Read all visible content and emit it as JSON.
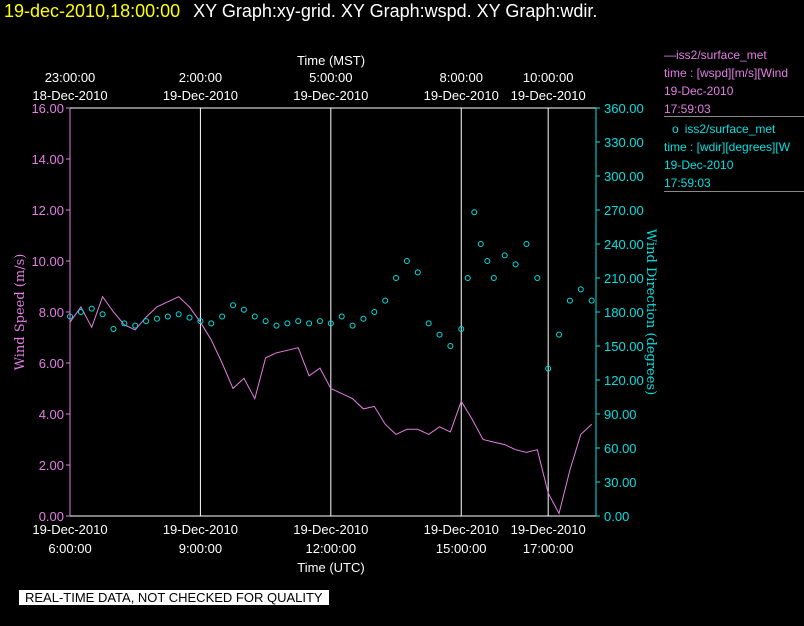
{
  "header": {
    "datetime": "19-dec-2010,18:00:00",
    "title": "XY Graph:xy-grid.  XY Graph:wspd.  XY Graph:wdir."
  },
  "legend": {
    "wspd": {
      "name": "iss2/surface_met",
      "line1": "time : [wspd][m/s][Wind",
      "line2": "19-Dec-2010",
      "line3": "17:59:03",
      "marker": "—"
    },
    "wdir": {
      "name": "iss2/surface_met",
      "line1": "time : [wdir][degrees][W",
      "line2": "19-Dec-2010",
      "line3": "17:59:03",
      "marker": "o"
    }
  },
  "quality_banner": "REAL-TIME DATA, NOT CHECKED FOR QUALITY",
  "colors": {
    "wspd": "#e47ee4",
    "wdir": "#00e0e0",
    "axis_left": "#e47ee4",
    "axis_right": "#00e0e0",
    "grid": "#ffffff",
    "background": "#000000"
  },
  "chart_data": {
    "type": "line",
    "top_axis": {
      "label": "Time (MST)",
      "ticks": [
        {
          "x": 6.0,
          "time": "23:00:00",
          "date": "18-Dec-2010"
        },
        {
          "x": 9.0,
          "time": "2:00:00",
          "date": "19-Dec-2010"
        },
        {
          "x": 12.0,
          "time": "5:00:00",
          "date": "19-Dec-2010"
        },
        {
          "x": 15.0,
          "time": "8:00:00",
          "date": "19-Dec-2010"
        },
        {
          "x": 17.0,
          "time": "10:00:00",
          "date": "19-Dec-2010"
        }
      ]
    },
    "bottom_axis": {
      "label": "Time (UTC)",
      "ticks": [
        {
          "x": 6.0,
          "date": "19-Dec-2010",
          "time": "6:00:00"
        },
        {
          "x": 9.0,
          "date": "19-Dec-2010",
          "time": "9:00:00"
        },
        {
          "x": 12.0,
          "date": "19-Dec-2010",
          "time": "12:00:00"
        },
        {
          "x": 15.0,
          "date": "19-Dec-2010",
          "time": "15:00:00"
        },
        {
          "x": 17.0,
          "date": "19-Dec-2010",
          "time": "17:00:00"
        }
      ],
      "xlim": [
        6.0,
        18.1
      ]
    },
    "y_left": {
      "label": "Wind Speed (m/s)",
      "ylim": [
        0,
        16
      ],
      "ticks": [
        "0.00",
        "2.00",
        "4.00",
        "6.00",
        "8.00",
        "10.00",
        "12.00",
        "14.00",
        "16.00"
      ]
    },
    "y_right": {
      "label": "Wind Direction (degrees)",
      "ylim": [
        0,
        360
      ],
      "ticks": [
        "0.00",
        "30.00",
        "60.00",
        "90.00",
        "120.00",
        "150.00",
        "180.00",
        "210.00",
        "240.00",
        "270.00",
        "300.00",
        "330.00",
        "360.00"
      ]
    },
    "series": [
      {
        "name": "iss2/surface_met",
        "style": "line",
        "x": [
          6.0,
          6.25,
          6.5,
          6.75,
          7.0,
          7.25,
          7.5,
          7.75,
          8.0,
          8.25,
          8.5,
          8.75,
          9.0,
          9.25,
          9.5,
          9.75,
          10.0,
          10.25,
          10.5,
          10.75,
          11.0,
          11.25,
          11.5,
          11.75,
          12.0,
          12.25,
          12.5,
          12.75,
          13.0,
          13.25,
          13.5,
          13.75,
          14.0,
          14.25,
          14.5,
          14.75,
          15.0,
          15.25,
          15.5,
          15.75,
          16.0,
          16.25,
          16.5,
          16.75,
          17.0,
          17.25,
          17.5,
          17.75,
          18.0
        ],
        "y": [
          7.6,
          8.2,
          7.4,
          8.6,
          8.0,
          7.5,
          7.3,
          7.8,
          8.2,
          8.4,
          8.6,
          8.2,
          7.6,
          6.9,
          6.0,
          5.0,
          5.4,
          4.6,
          6.2,
          6.4,
          6.5,
          6.6,
          5.5,
          5.8,
          5.0,
          4.8,
          4.6,
          4.2,
          4.3,
          3.6,
          3.2,
          3.4,
          3.4,
          3.2,
          3.5,
          3.3,
          4.5,
          3.8,
          3.0,
          2.9,
          2.8,
          2.6,
          2.5,
          2.6,
          0.9,
          0.1,
          1.8,
          3.2,
          3.6
        ]
      },
      {
        "name": "iss2/surface_met",
        "style": "circles",
        "x": [
          6.0,
          6.25,
          6.5,
          6.75,
          7.0,
          7.25,
          7.5,
          7.75,
          8.0,
          8.25,
          8.5,
          8.75,
          9.0,
          9.25,
          9.5,
          9.75,
          10.0,
          10.25,
          10.5,
          10.75,
          11.0,
          11.25,
          11.5,
          11.75,
          12.0,
          12.25,
          12.5,
          12.75,
          13.0,
          13.25,
          13.5,
          13.75,
          14.0,
          14.25,
          14.5,
          14.75,
          15.0,
          15.15,
          15.3,
          15.45,
          15.6,
          15.75,
          16.0,
          16.25,
          16.5,
          16.75,
          17.0,
          17.25,
          17.5,
          17.75,
          18.0
        ],
        "y": [
          176,
          180,
          183,
          178,
          165,
          170,
          168,
          172,
          174,
          176,
          178,
          175,
          172,
          170,
          176,
          186,
          182,
          176,
          172,
          168,
          170,
          172,
          170,
          172,
          170,
          176,
          168,
          174,
          180,
          190,
          210,
          225,
          215,
          170,
          160,
          150,
          165,
          210,
          268,
          240,
          225,
          210,
          230,
          222,
          240,
          210,
          130,
          160,
          190,
          200,
          190
        ]
      }
    ]
  }
}
